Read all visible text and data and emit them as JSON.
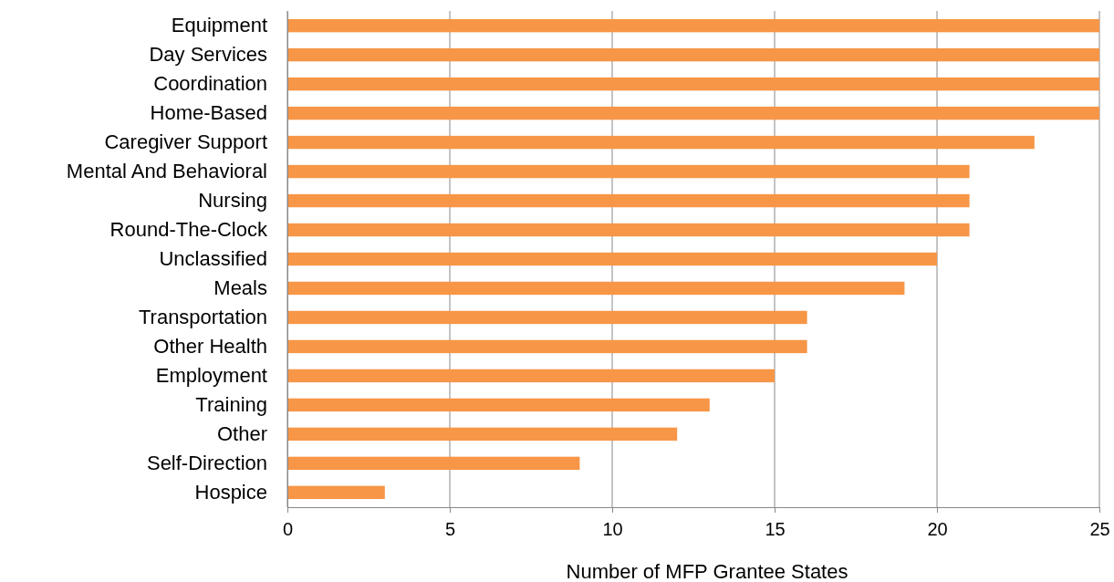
{
  "chart_data": {
    "type": "bar",
    "orientation": "horizontal",
    "xlabel": "Number of MFP Grantee States",
    "categories": [
      "Equipment",
      "Day Services",
      "Coordination",
      "Home-Based",
      "Caregiver Support",
      "Mental And Behavioral",
      "Nursing",
      "Round-The-Clock",
      "Unclassified",
      "Meals",
      "Transportation",
      "Other Health",
      "Employment",
      "Training",
      "Other",
      "Self-Direction",
      "Hospice"
    ],
    "values": [
      25,
      25,
      25,
      25,
      23,
      21,
      21,
      21,
      20,
      19,
      16,
      16,
      15,
      13,
      12,
      9,
      3
    ],
    "color": "#f79646",
    "xlim": [
      0,
      25
    ],
    "xticks": [
      0,
      5,
      10,
      15,
      20,
      25
    ],
    "grid": "x"
  }
}
